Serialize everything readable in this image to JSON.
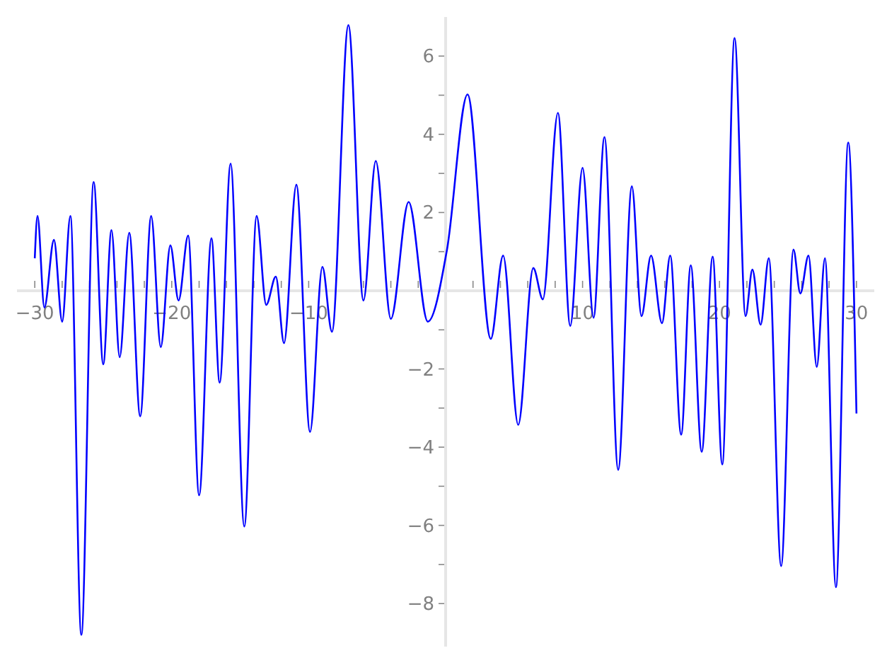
{
  "chart_data": {
    "type": "line",
    "x": [
      -30,
      -29.8,
      -29.3,
      -28.6,
      -28.0,
      -27.4,
      -26.6,
      -25.7,
      -25.0,
      -24.4,
      -23.8,
      -23.1,
      -22.3,
      -21.5,
      -20.8,
      -20.1,
      -19.5,
      -18.8,
      -18.0,
      -17.1,
      -16.5,
      -15.7,
      -14.7,
      -13.8,
      -13.1,
      -12.4,
      -11.8,
      -10.9,
      -9.9,
      -9.0,
      -8.3,
      -7.1,
      -6.0,
      -5.1,
      -4.0,
      -2.7,
      -1.3,
      0.1,
      1.6,
      3.3,
      4.2,
      5.3,
      6.4,
      7.1,
      8.2,
      9.1,
      10.0,
      10.8,
      11.6,
      12.6,
      13.6,
      14.3,
      15.0,
      15.8,
      16.4,
      17.2,
      17.9,
      18.7,
      19.5,
      20.2,
      21.1,
      21.9,
      22.4,
      23.0,
      23.6,
      24.5,
      25.4,
      25.9,
      26.5,
      27.1,
      27.7,
      28.5,
      29.4,
      30
    ],
    "series": [
      {
        "color": "#0000ff",
        "values": [
          0.83,
          1.91,
          -0.43,
          1.3,
          -0.79,
          1.91,
          -8.8,
          2.78,
          -1.88,
          1.55,
          -1.7,
          1.48,
          -3.21,
          1.91,
          -1.44,
          1.16,
          -0.25,
          1.41,
          -5.23,
          1.34,
          -2.35,
          3.25,
          -6.03,
          1.91,
          -0.36,
          0.36,
          -1.34,
          2.71,
          -3.61,
          0.61,
          -1.05,
          6.79,
          -0.25,
          3.32,
          -0.72,
          2.27,
          -0.79,
          1.05,
          5.02,
          -1.23,
          0.9,
          -3.43,
          0.58,
          -0.22,
          4.55,
          -0.9,
          3.14,
          -0.69,
          3.93,
          -4.58,
          2.67,
          -0.65,
          0.9,
          -0.83,
          0.9,
          -3.68,
          0.65,
          -4.12,
          0.87,
          -4.44,
          6.46,
          -0.65,
          0.54,
          -0.87,
          0.83,
          -7.04,
          1.05,
          -0.07,
          0.9,
          -1.95,
          0.83,
          -7.58,
          3.79,
          -3.14
        ]
      }
    ],
    "xlim": [
      -31.3,
      31.3
    ],
    "ylim": [
      -9.1,
      7.0
    ],
    "xticks": [
      -30,
      {
        "value": -28,
        "label": null
      },
      {
        "value": -26,
        "label": null
      },
      {
        "value": -24,
        "label": null
      },
      {
        "value": -22,
        "label": null
      },
      -20,
      {
        "value": -18,
        "label": null
      },
      {
        "value": -16,
        "label": null
      },
      {
        "value": -14,
        "label": null
      },
      {
        "value": -12,
        "label": null
      },
      -10,
      {
        "value": -8,
        "label": null
      },
      {
        "value": -6,
        "label": null
      },
      {
        "value": -4,
        "label": null
      },
      {
        "value": -2,
        "label": null
      },
      {
        "value": 2,
        "label": null
      },
      {
        "value": 4,
        "label": null
      },
      {
        "value": 6,
        "label": null
      },
      {
        "value": 8,
        "label": null
      },
      10,
      {
        "value": 12,
        "label": null
      },
      {
        "value": 14,
        "label": null
      },
      {
        "value": 16,
        "label": null
      },
      {
        "value": 18,
        "label": null
      },
      20,
      {
        "value": 22,
        "label": null
      },
      {
        "value": 24,
        "label": null
      },
      {
        "value": 26,
        "label": null
      },
      {
        "value": 28,
        "label": null
      },
      30
    ],
    "yticks": [
      -8,
      {
        "value": -7,
        "label": null
      },
      -6,
      {
        "value": -5,
        "label": null
      },
      -4,
      {
        "value": -3,
        "label": null
      },
      -2,
      {
        "value": -1,
        "label": null
      },
      {
        "value": 1,
        "label": null
      },
      2,
      {
        "value": 3,
        "label": null
      },
      4,
      {
        "value": 5,
        "label": null
      },
      6
    ],
    "grid": false,
    "line_style": "solid",
    "marker": "none"
  }
}
